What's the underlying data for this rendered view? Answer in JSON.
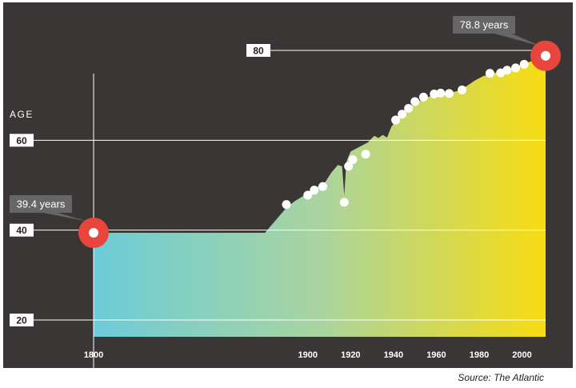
{
  "chart_data": {
    "type": "area",
    "title": "",
    "xlabel": "",
    "ylabel": "AGE",
    "xlim": [
      1800,
      2011
    ],
    "ylim": [
      15,
      90
    ],
    "x_ticks": [
      1800,
      1900,
      1920,
      1940,
      1960,
      1980,
      2000
    ],
    "y_ticks": [
      20,
      40,
      60,
      80
    ],
    "grid": "horizontal-at-y-ticks",
    "series": [
      {
        "values": [
          [
            1800,
            39.4
          ],
          [
            1880,
            39.4
          ],
          [
            1890,
            45
          ],
          [
            1894,
            46.5
          ],
          [
            1900,
            48.2
          ],
          [
            1904,
            49.5
          ],
          [
            1908,
            50.6
          ],
          [
            1911,
            52.8
          ],
          [
            1914,
            54.5
          ],
          [
            1916,
            54.2
          ],
          [
            1917,
            47.8
          ],
          [
            1918,
            55.2
          ],
          [
            1920,
            57.5
          ],
          [
            1924,
            58.5
          ],
          [
            1928,
            59.5
          ],
          [
            1931,
            61
          ],
          [
            1933,
            60.5
          ],
          [
            1935,
            61.2
          ],
          [
            1937,
            60.6
          ],
          [
            1939,
            63
          ],
          [
            1941,
            64.3
          ],
          [
            1944,
            65.8
          ],
          [
            1947,
            67
          ],
          [
            1950,
            68.3
          ],
          [
            1954,
            69.2
          ],
          [
            1958,
            70
          ],
          [
            1962,
            70.2
          ],
          [
            1966,
            70.5
          ],
          [
            1970,
            71
          ],
          [
            1974,
            72
          ],
          [
            1978,
            73.3
          ],
          [
            1982,
            74.3
          ],
          [
            1986,
            74.8
          ],
          [
            1990,
            75.4
          ],
          [
            1994,
            75.8
          ],
          [
            1998,
            76.6
          ],
          [
            2002,
            77.2
          ],
          [
            2006,
            77.9
          ],
          [
            2011,
            78.8
          ]
        ]
      }
    ],
    "markers": [
      [
        1890,
        45.7
      ],
      [
        1900,
        47.8
      ],
      [
        1903,
        48.9
      ],
      [
        1907,
        49.7
      ],
      [
        1917,
        46.2
      ],
      [
        1919,
        54.2
      ],
      [
        1921,
        55.7
      ],
      [
        1927,
        56.9
      ],
      [
        1941,
        64.5
      ],
      [
        1944,
        65.8
      ],
      [
        1947,
        67.1
      ],
      [
        1950,
        68.6
      ],
      [
        1954,
        69.6
      ],
      [
        1959,
        70.3
      ],
      [
        1962,
        70.5
      ],
      [
        1966,
        70.4
      ],
      [
        1972,
        71.2
      ],
      [
        1985,
        74.9
      ],
      [
        1990,
        75
      ],
      [
        1993,
        75.6
      ],
      [
        1997,
        76.1
      ],
      [
        2001,
        76.9
      ]
    ],
    "highlights": [
      {
        "x": 1800,
        "y": 39.4,
        "label": "39.4 years"
      },
      {
        "x": 2011,
        "y": 78.8,
        "label": "78.8 years"
      }
    ],
    "gradient_colors": [
      "#6cccd8",
      "#a9d4a0",
      "#f8dc12"
    ],
    "background_color": "#3a3636",
    "highlight_color": "#e8463c"
  },
  "source": "Source: The Atlantic"
}
